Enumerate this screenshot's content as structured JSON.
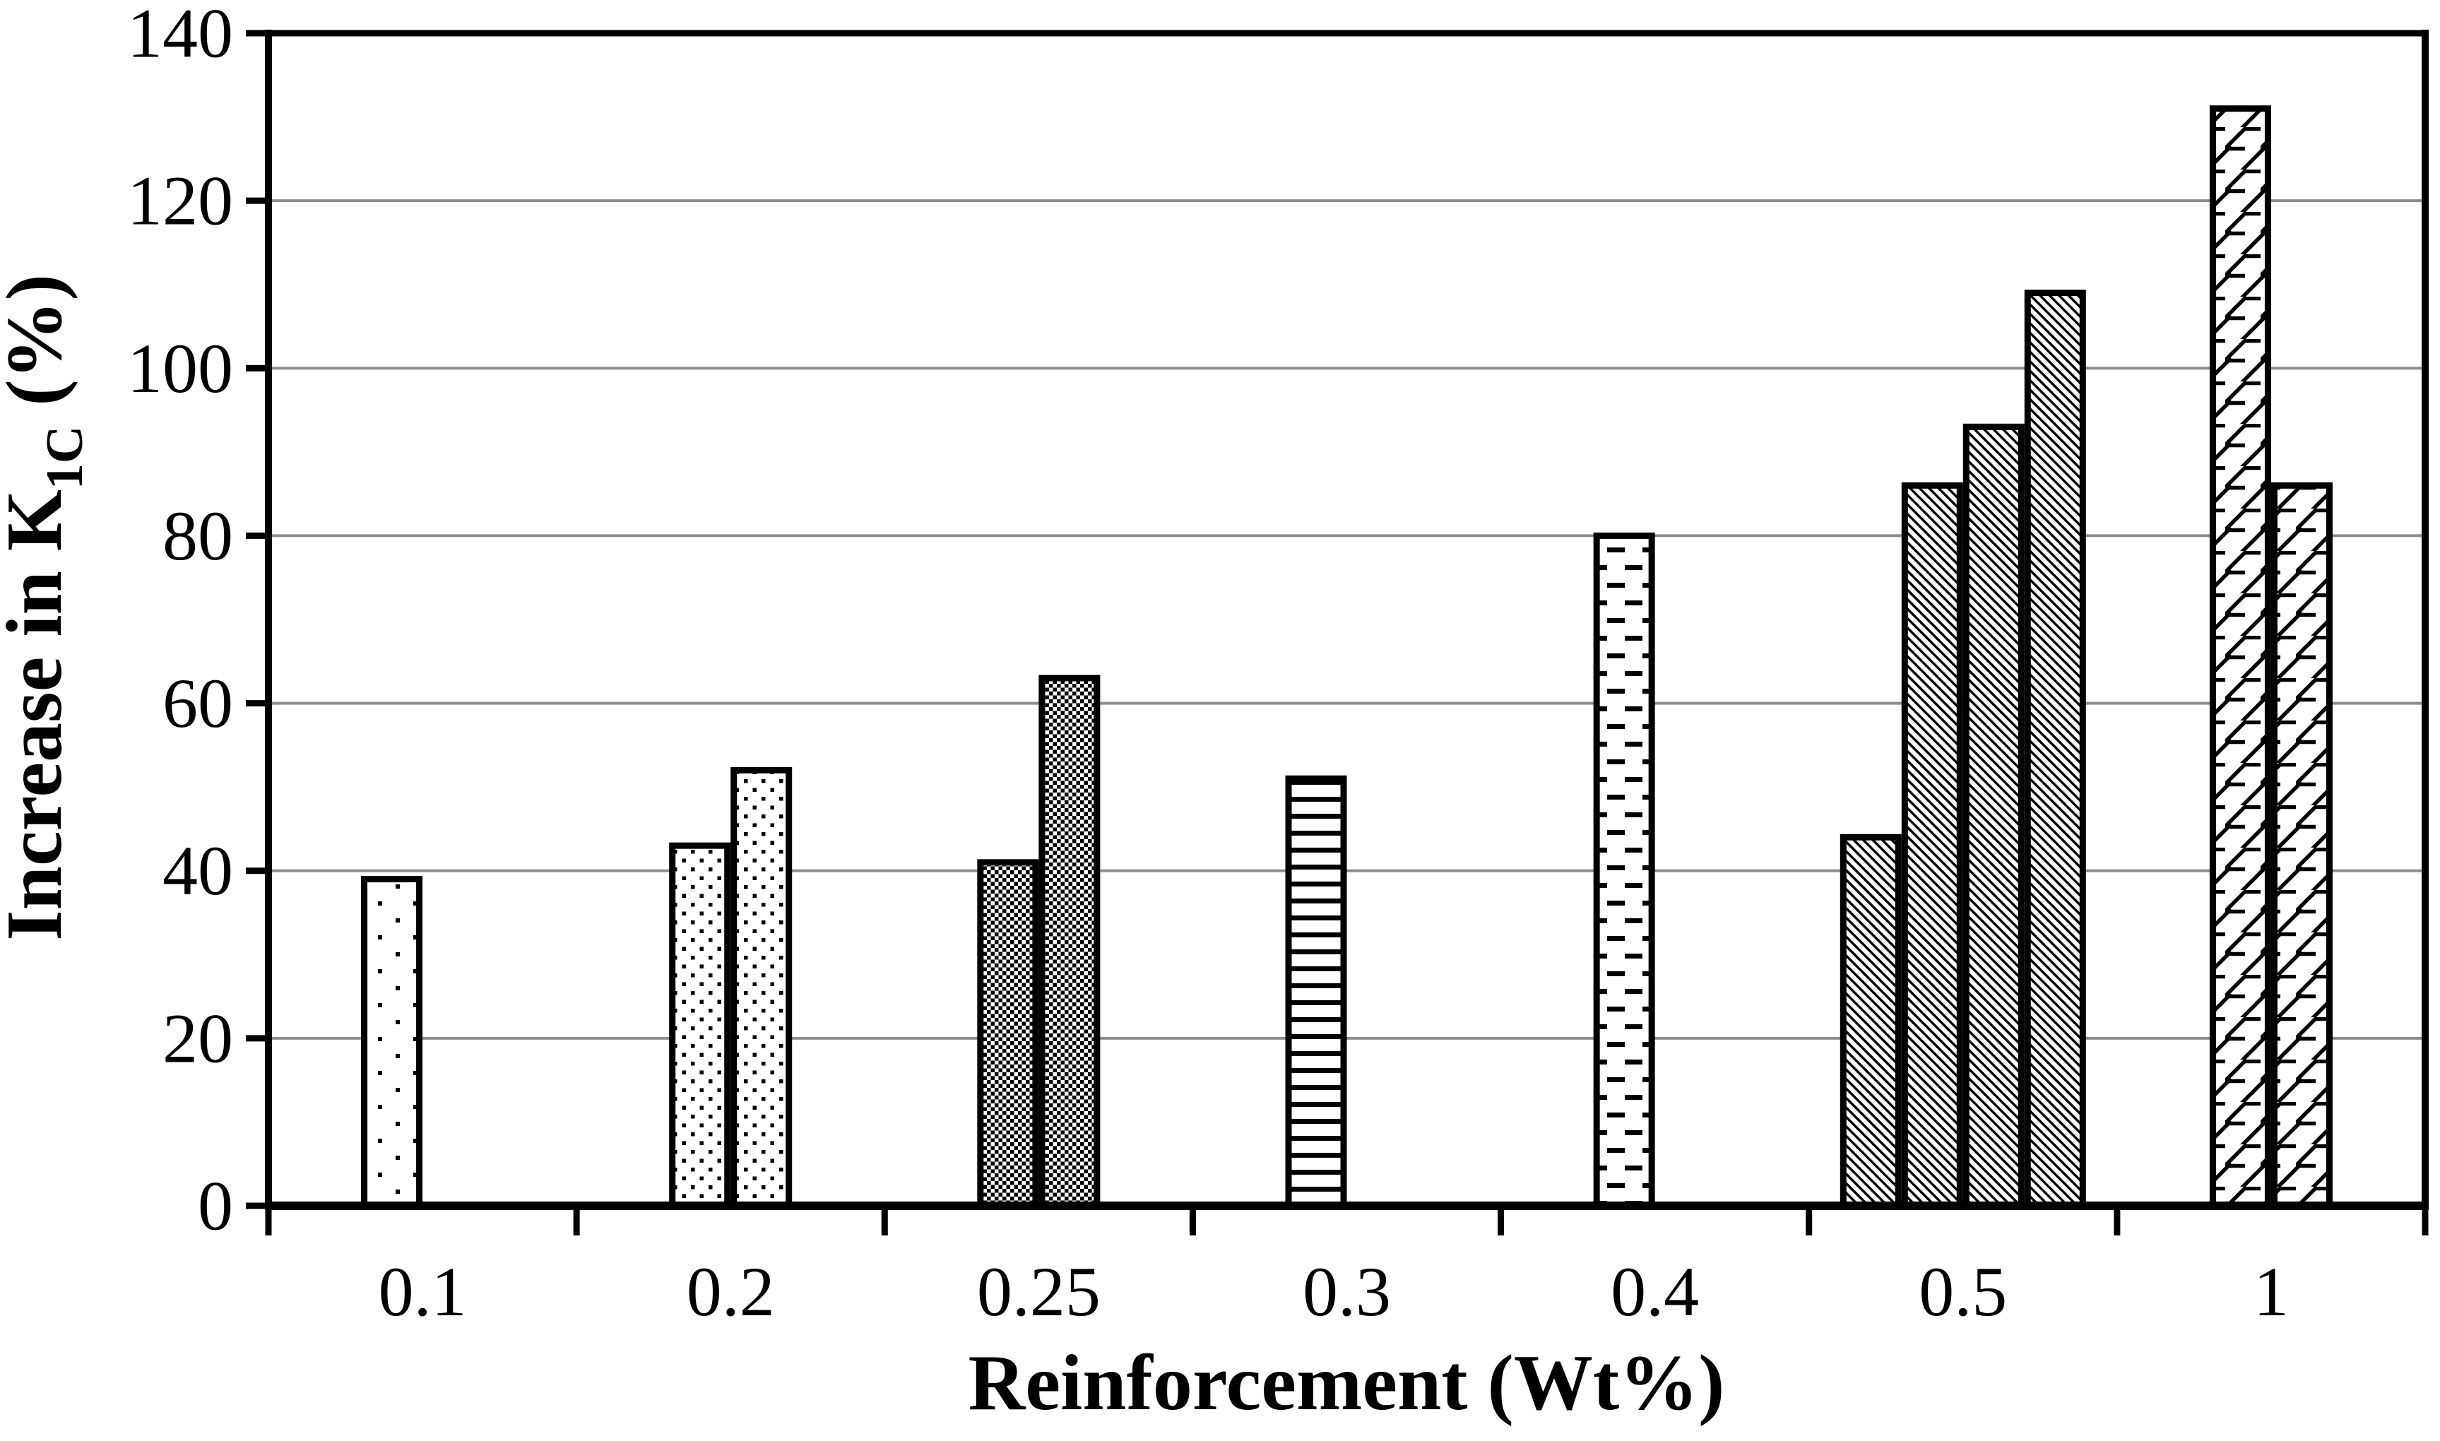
{
  "chart_data": {
    "type": "bar",
    "title": "",
    "xlabel": "Reinforcement (Wt%)",
    "ylabel": {
      "prefix": "Increase in K",
      "subscript": "1C",
      "suffix": " (%)"
    },
    "ylim": [
      0,
      140
    ],
    "ytick_step": 20,
    "yticks": [
      "0",
      "20",
      "40",
      "60",
      "80",
      "100",
      "120",
      "140"
    ],
    "categories": [
      "0.1",
      "0.2",
      "0.25",
      "0.3",
      "0.4",
      "0.5",
      "1"
    ],
    "grid": "horizontal",
    "legend_position": "none",
    "groups": [
      {
        "category": "0.1",
        "offset_bars": -0.5,
        "bars": [
          {
            "value": 39,
            "pattern": "dots-sparse"
          }
        ]
      },
      {
        "category": "0.2",
        "offset_bars": 0,
        "bars": [
          {
            "value": 43,
            "pattern": "dots"
          },
          {
            "value": 52,
            "pattern": "dots"
          }
        ]
      },
      {
        "category": "0.25",
        "offset_bars": 0,
        "bars": [
          {
            "value": 41,
            "pattern": "checkerboard"
          },
          {
            "value": 63,
            "pattern": "checkerboard"
          }
        ]
      },
      {
        "category": "0.3",
        "offset_bars": -0.5,
        "bars": [
          {
            "value": 51,
            "pattern": "horizontal-lines"
          }
        ]
      },
      {
        "category": "0.4",
        "offset_bars": -0.5,
        "bars": [
          {
            "value": 80,
            "pattern": "horizontal-dashes"
          }
        ]
      },
      {
        "category": "0.5",
        "offset_bars": 0,
        "bars": [
          {
            "value": 44,
            "pattern": "diagonal-stripes"
          },
          {
            "value": 86,
            "pattern": "diagonal-stripes"
          },
          {
            "value": 93,
            "pattern": "diagonal-stripes"
          },
          {
            "value": 109,
            "pattern": "diagonal-stripes"
          }
        ]
      },
      {
        "category": "1",
        "offset_bars": 0,
        "bars": [
          {
            "value": 131,
            "pattern": "diagonal-shingle"
          },
          {
            "value": 86,
            "pattern": "diagonal-shingle"
          }
        ]
      }
    ],
    "colors": {
      "background": "#ffffff",
      "bar_fill_background": "#ffffff",
      "bar_outline": "#000000",
      "gridline": "#8e8e8e",
      "axis": "#000000",
      "text": "#000000"
    }
  }
}
